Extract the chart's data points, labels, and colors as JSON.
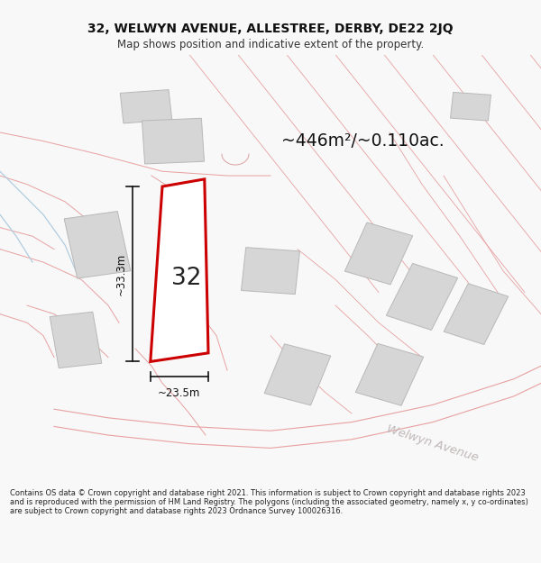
{
  "title_line1": "32, WELWYN AVENUE, ALLESTREE, DERBY, DE22 2JQ",
  "title_line2": "Map shows position and indicative extent of the property.",
  "area_text": "~446m²/~0.110ac.",
  "property_number": "32",
  "dim_vertical": "~33.3m",
  "dim_horizontal": "~23.5m",
  "street_name": "Welwyn Avenue",
  "footer_text": "Contains OS data © Crown copyright and database right 2021. This information is subject to Crown copyright and database rights 2023 and is reproduced with the permission of HM Land Registry. The polygons (including the associated geometry, namely x, y co-ordinates) are subject to Crown copyright and database rights 2023 Ordnance Survey 100026316.",
  "map_bg": "#f7f4f4",
  "property_fill": "#ffffff",
  "property_edge": "#cc0000",
  "building_fill": "#d6d6d6",
  "building_edge": "#b8b8b8",
  "boundary_color": "#e8a0a0",
  "boundary_color2": "#dda0a0",
  "light_blue_line": "#b0cce0",
  "dim_color": "#111111",
  "street_color": "#c0b8b8"
}
